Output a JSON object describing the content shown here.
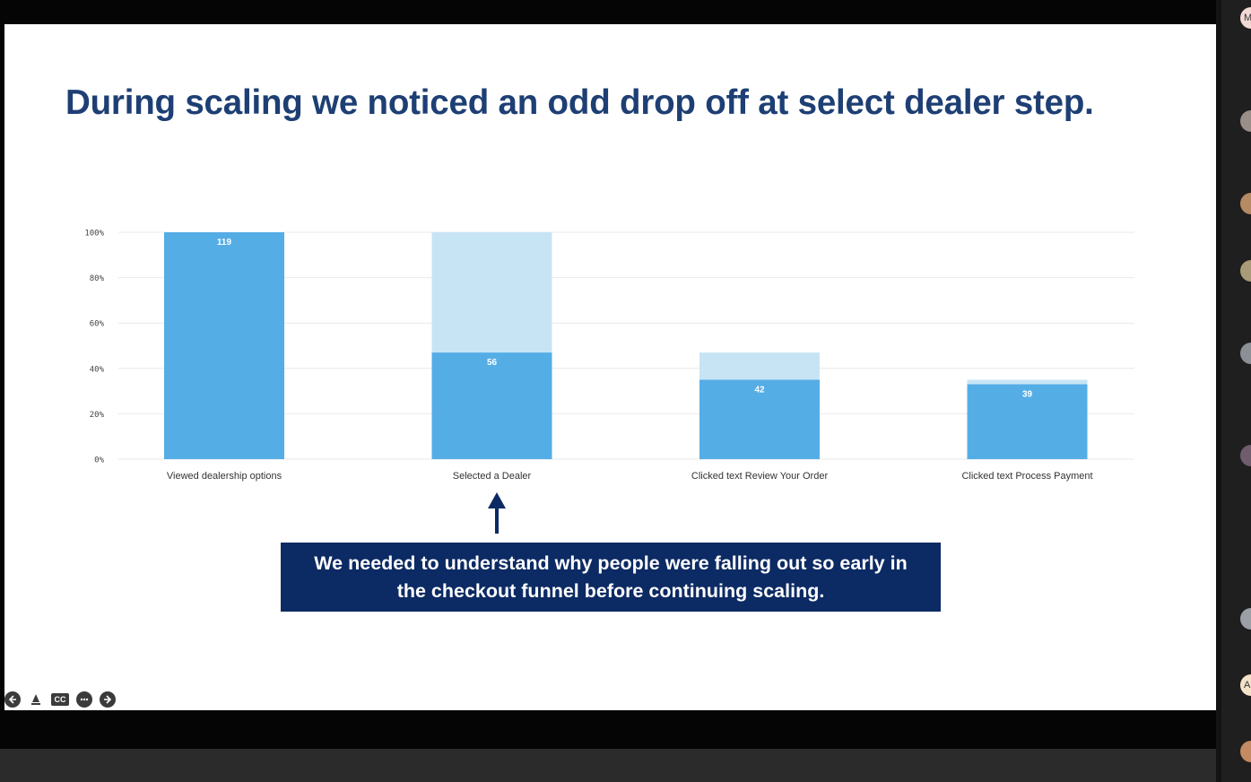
{
  "slide": {
    "title": "During scaling we noticed an odd drop off at select dealer step.",
    "callout_line1": "We needed to understand why people were falling out so early in",
    "callout_line2": "the checkout funnel before continuing scaling."
  },
  "controls": {
    "prev_icon": "arrow-left-icon",
    "pen_icon": "pen-icon",
    "cc_label": "CC",
    "more_icon": "more-icon",
    "next_icon": "arrow-right-icon"
  },
  "participants": {
    "initials": [
      "M",
      "",
      "",
      "",
      "",
      "",
      "",
      "A",
      ""
    ]
  },
  "chart_data": {
    "type": "bar",
    "categories": [
      "Viewed dealership options",
      "Selected a Dealer",
      "Clicked text Review Your Order",
      "Clicked text Process Payment"
    ],
    "values": [
      119,
      56,
      42,
      39
    ],
    "percent": [
      100,
      47,
      35,
      33
    ],
    "previous_step_percent": [
      100,
      100,
      47,
      35
    ],
    "data_labels": [
      "119",
      "56",
      "42",
      "39"
    ],
    "yticks": [
      "0%",
      "20%",
      "40%",
      "60%",
      "80%",
      "100%"
    ],
    "ylim": [
      0,
      100
    ],
    "grid": true,
    "colors": {
      "bar": "#55ade6",
      "dropoff": "#c7e4f5",
      "grid": "#e9e9e9",
      "label": "#333333"
    }
  }
}
